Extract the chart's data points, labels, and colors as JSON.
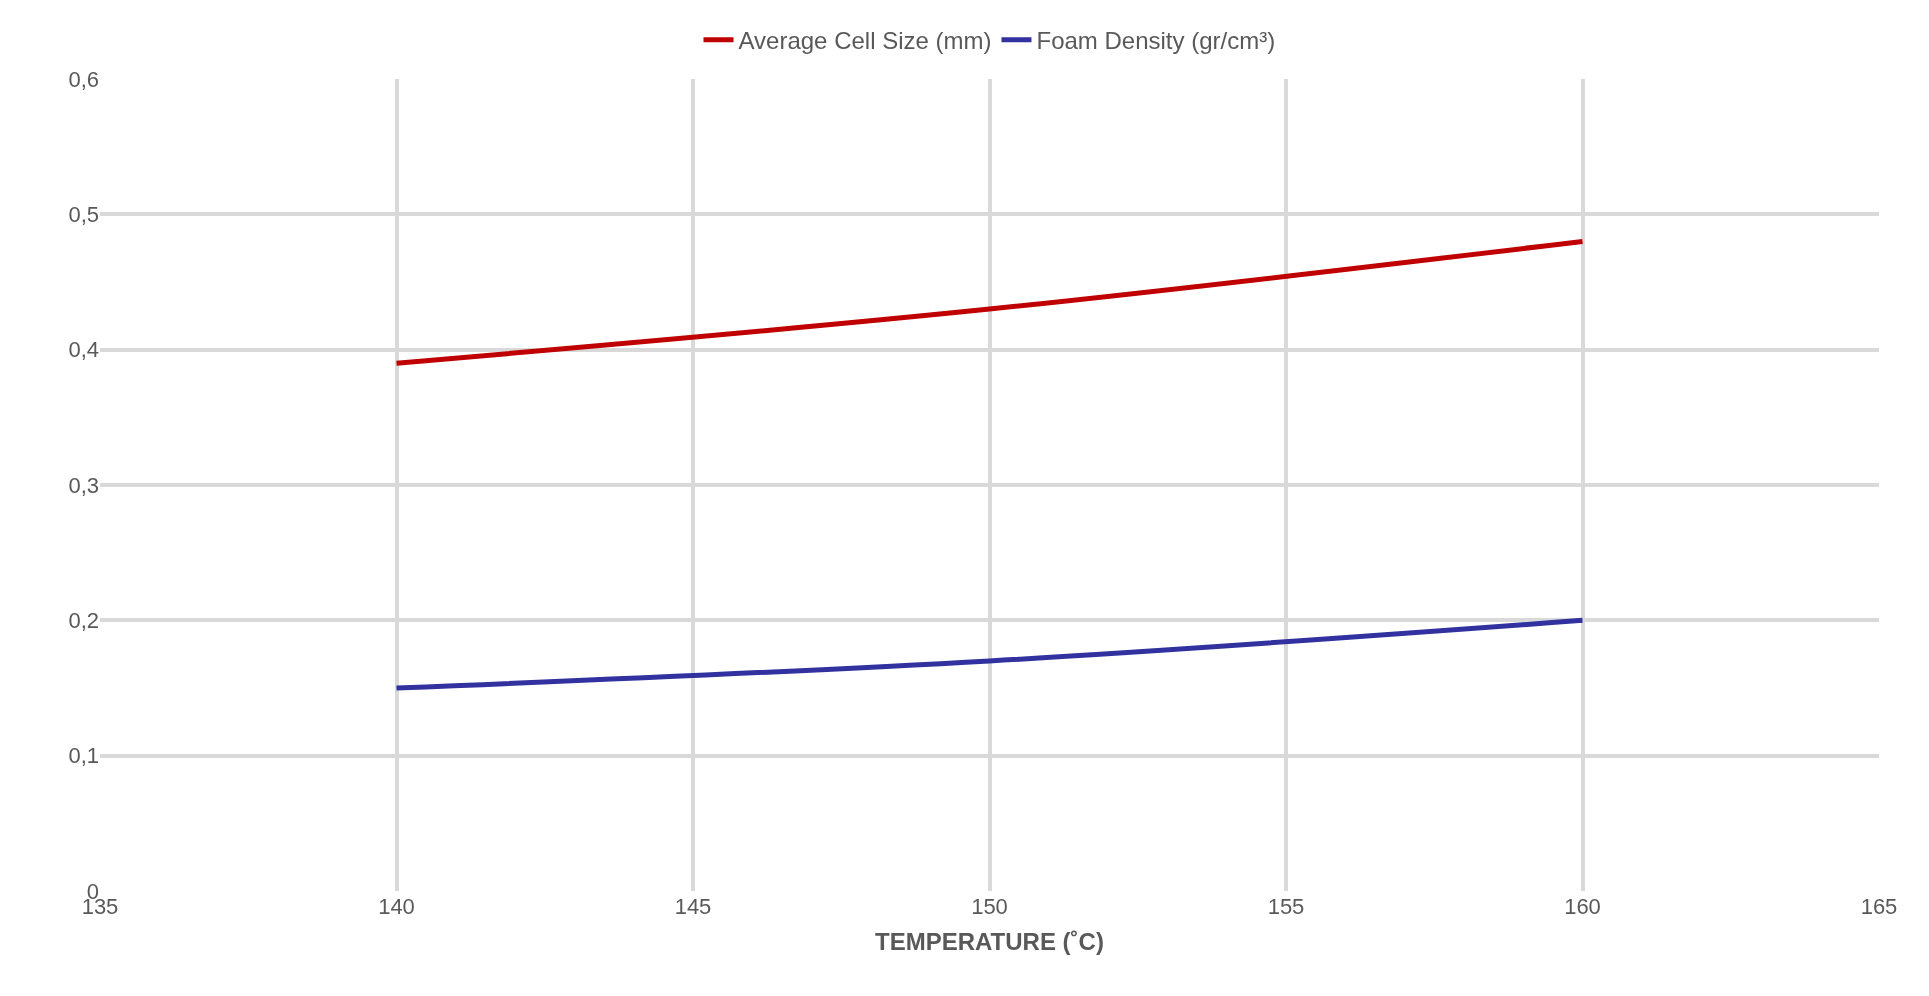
{
  "chart_data": {
    "type": "line",
    "xlabel": "TEMPERATURE (˚C)",
    "x": [
      140,
      150,
      160
    ],
    "series": [
      {
        "name": "Average Cell Size (mm)",
        "color": "#c00000",
        "values": [
          0.39,
          0.43,
          0.48
        ]
      },
      {
        "name": "Foam Density (gr/cm³)",
        "color": "#3131a0",
        "values": [
          0.15,
          0.17,
          0.2
        ]
      }
    ],
    "xlim": [
      135,
      165
    ],
    "xticks": [
      135,
      140,
      145,
      150,
      155,
      160,
      165
    ],
    "ylim": [
      0,
      0.6
    ],
    "yticks": [
      0,
      {
        "value": 0.1,
        "label": "0,1"
      },
      {
        "value": 0.2,
        "label": "0,2"
      },
      {
        "value": 0.3,
        "label": "0,3"
      },
      {
        "value": 0.4,
        "label": "0,4"
      },
      {
        "value": 0.5,
        "label": "0,5"
      },
      {
        "value": 0.6,
        "label": "0,6"
      }
    ],
    "grid": true,
    "legend": "top",
    "marker": "none",
    "line_style": "solid"
  }
}
